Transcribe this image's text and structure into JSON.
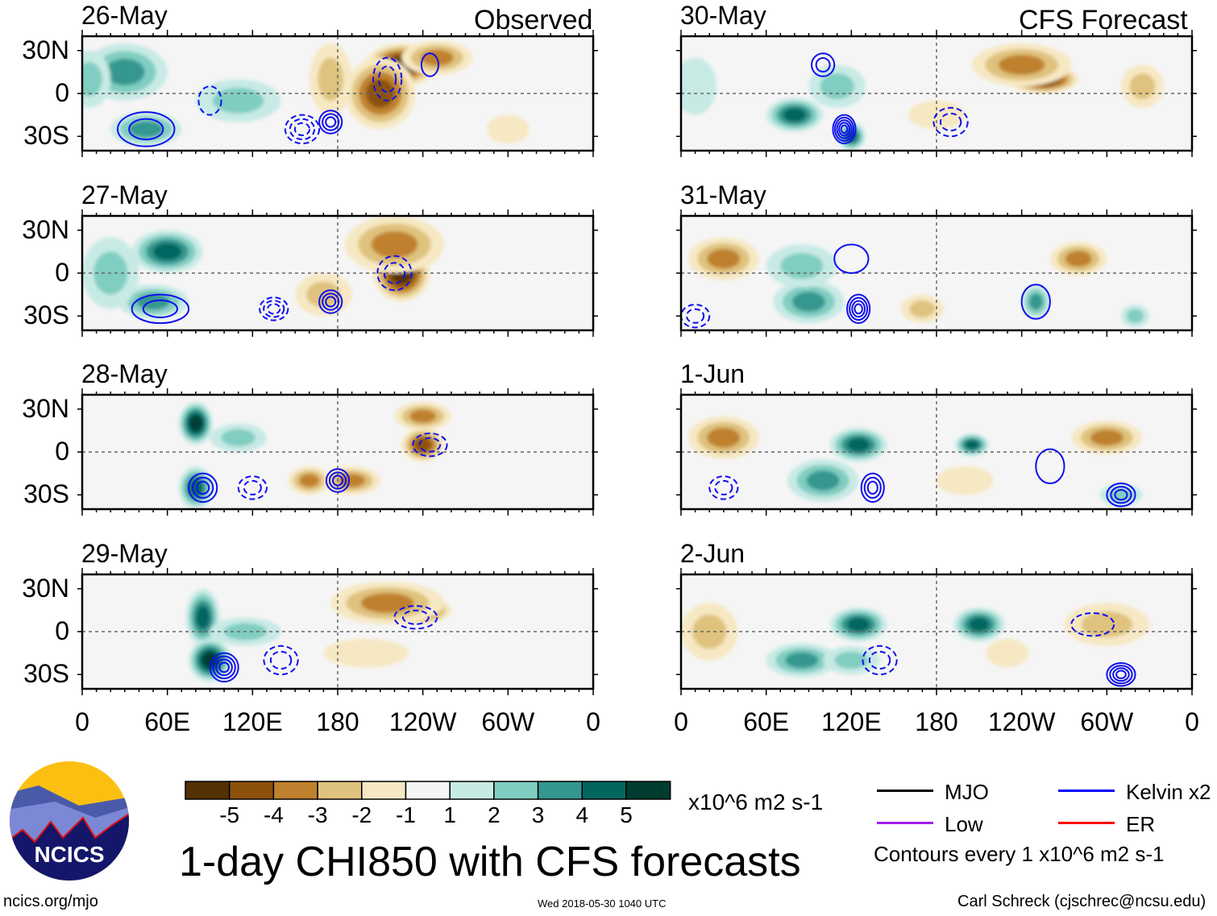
{
  "title": "1-day CHI850 with CFS forecasts",
  "column_labels": {
    "left": "Observed",
    "right": "CFS Forecast"
  },
  "units": "x10^6 m2 s-1",
  "contour_note": "Contours every 1 x10^6 m2 s-1",
  "legend": [
    {
      "label": "MJO",
      "color": "#000000"
    },
    {
      "label": "Kelvin x2",
      "color": "#0000ff"
    },
    {
      "label": "Low",
      "color": "#a020f0"
    },
    {
      "label": "ER",
      "color": "#ff0000"
    }
  ],
  "footer": {
    "left": "ncics.org/mjo",
    "center": "Wed 2018-05-30 1040 UTC",
    "right": "Carl Schreck (cjschrec@ncsu.edu)"
  },
  "logo_text": "NCICS",
  "colorbar": {
    "ticks": [
      "-5",
      "-4",
      "-3",
      "-2",
      "-1",
      "1",
      "2",
      "3",
      "4",
      "5"
    ],
    "colors": [
      "#543005",
      "#8c510a",
      "#bf812d",
      "#dfc27d",
      "#f6e8c3",
      "#f5f5f5",
      "#c7eae5",
      "#80cdc1",
      "#35978f",
      "#01665e",
      "#003c30"
    ]
  },
  "chart_data": {
    "type": "heatmap",
    "lat_ticks": [
      "30N",
      "0",
      "30S"
    ],
    "lon_ticks": [
      "0",
      "60E",
      "120E",
      "180",
      "120W",
      "60W",
      "0"
    ],
    "lat_range": [
      -40,
      40
    ],
    "lon_range": [
      0,
      360
    ],
    "panels": [
      {
        "date": "26-May",
        "col": 0,
        "row": 0,
        "blobs": [
          [
            30,
            15,
            3,
            30,
            20
          ],
          [
            45,
            -25,
            3,
            25,
            12
          ],
          [
            110,
            -5,
            2,
            30,
            15
          ],
          [
            5,
            10,
            2,
            15,
            20
          ],
          [
            225,
            20,
            -5,
            25,
            15
          ],
          [
            210,
            0,
            -4,
            25,
            25
          ],
          [
            250,
            25,
            -3,
            25,
            12
          ],
          [
            175,
            10,
            -2,
            15,
            25
          ],
          [
            300,
            -25,
            -1,
            15,
            10
          ]
        ],
        "contours": [
          [
            45,
            -25,
            20,
            12,
            0,
            2
          ],
          [
            155,
            -25,
            12,
            10,
            1,
            3
          ],
          [
            175,
            -20,
            8,
            8,
            0,
            3
          ],
          [
            215,
            10,
            10,
            15,
            1,
            2
          ],
          [
            245,
            20,
            6,
            8,
            0,
            1
          ],
          [
            90,
            -5,
            8,
            10,
            1,
            1
          ]
        ]
      },
      {
        "date": "27-May",
        "col": 0,
        "row": 1,
        "blobs": [
          [
            60,
            15,
            4,
            25,
            15
          ],
          [
            50,
            -20,
            3,
            25,
            12
          ],
          [
            20,
            0,
            2,
            20,
            25
          ],
          [
            225,
            0,
            -5,
            20,
            20
          ],
          [
            220,
            20,
            -3,
            35,
            20
          ],
          [
            170,
            -15,
            -2,
            20,
            15
          ]
        ],
        "contours": [
          [
            55,
            -25,
            20,
            10,
            0,
            2
          ],
          [
            175,
            -20,
            8,
            8,
            0,
            3
          ],
          [
            135,
            -25,
            10,
            8,
            1,
            3
          ],
          [
            220,
            0,
            12,
            12,
            1,
            2
          ]
        ]
      },
      {
        "date": "28-May",
        "col": 0,
        "row": 2,
        "blobs": [
          [
            80,
            20,
            5,
            12,
            15
          ],
          [
            80,
            -25,
            4,
            12,
            15
          ],
          [
            110,
            10,
            2,
            20,
            10
          ],
          [
            240,
            5,
            -4,
            15,
            12
          ],
          [
            240,
            25,
            -3,
            20,
            10
          ],
          [
            160,
            -20,
            -3,
            15,
            10
          ],
          [
            190,
            -20,
            -3,
            20,
            10
          ]
        ],
        "contours": [
          [
            85,
            -25,
            10,
            10,
            0,
            3
          ],
          [
            180,
            -20,
            8,
            8,
            0,
            3
          ],
          [
            245,
            5,
            12,
            8,
            1,
            2
          ],
          [
            120,
            -25,
            10,
            8,
            1,
            2
          ]
        ]
      },
      {
        "date": "29-May",
        "col": 0,
        "row": 3,
        "blobs": [
          [
            85,
            10,
            4,
            12,
            20
          ],
          [
            90,
            -20,
            5,
            15,
            15
          ],
          [
            115,
            0,
            2,
            25,
            10
          ],
          [
            235,
            15,
            -5,
            25,
            10
          ],
          [
            215,
            20,
            -3,
            40,
            15
          ],
          [
            200,
            -15,
            -1,
            30,
            10
          ]
        ],
        "contours": [
          [
            100,
            -25,
            10,
            10,
            0,
            4
          ],
          [
            140,
            -20,
            12,
            10,
            1,
            2
          ],
          [
            235,
            10,
            15,
            8,
            1,
            2
          ]
        ]
      },
      {
        "date": "30-May",
        "col": 1,
        "row": 0,
        "blobs": [
          [
            80,
            -15,
            4,
            20,
            12
          ],
          [
            120,
            -30,
            4,
            10,
            10
          ],
          [
            110,
            5,
            2,
            20,
            15
          ],
          [
            10,
            5,
            1,
            15,
            20
          ],
          [
            255,
            10,
            -5,
            25,
            10
          ],
          [
            240,
            20,
            -3,
            35,
            15
          ],
          [
            325,
            5,
            -2,
            15,
            15
          ],
          [
            180,
            -15,
            -1,
            20,
            10
          ]
        ],
        "contours": [
          [
            115,
            -25,
            8,
            10,
            0,
            5
          ],
          [
            100,
            20,
            8,
            8,
            0,
            2
          ],
          [
            190,
            -20,
            12,
            10,
            1,
            2
          ]
        ]
      },
      {
        "date": "31-May",
        "col": 1,
        "row": 1,
        "blobs": [
          [
            90,
            -20,
            3,
            25,
            15
          ],
          [
            85,
            5,
            2,
            25,
            15
          ],
          [
            250,
            -20,
            3,
            10,
            12
          ],
          [
            320,
            -30,
            2,
            10,
            8
          ],
          [
            30,
            10,
            -3,
            25,
            15
          ],
          [
            280,
            10,
            -3,
            20,
            12
          ],
          [
            170,
            -25,
            -2,
            15,
            10
          ]
        ],
        "contours": [
          [
            125,
            -25,
            8,
            10,
            0,
            4
          ],
          [
            250,
            -20,
            10,
            12,
            0,
            1
          ],
          [
            120,
            10,
            12,
            10,
            0,
            1
          ],
          [
            10,
            -30,
            10,
            8,
            1,
            2
          ]
        ]
      },
      {
        "date": "1-Jun",
        "col": 1,
        "row": 2,
        "blobs": [
          [
            125,
            5,
            4,
            20,
            12
          ],
          [
            205,
            5,
            4,
            12,
            8
          ],
          [
            100,
            -20,
            3,
            25,
            15
          ],
          [
            310,
            -30,
            2,
            15,
            8
          ],
          [
            30,
            10,
            -3,
            25,
            15
          ],
          [
            300,
            10,
            -3,
            25,
            12
          ],
          [
            200,
            -20,
            -1,
            20,
            10
          ]
        ],
        "contours": [
          [
            135,
            -25,
            8,
            10,
            0,
            3
          ],
          [
            310,
            -30,
            10,
            8,
            0,
            3
          ],
          [
            260,
            -10,
            10,
            12,
            0,
            1
          ],
          [
            30,
            -25,
            10,
            8,
            1,
            2
          ]
        ]
      },
      {
        "date": "2-Jun",
        "col": 1,
        "row": 3,
        "blobs": [
          [
            125,
            5,
            4,
            20,
            12
          ],
          [
            210,
            5,
            4,
            18,
            12
          ],
          [
            85,
            -20,
            3,
            25,
            12
          ],
          [
            120,
            -20,
            2,
            20,
            10
          ],
          [
            20,
            0,
            -2,
            20,
            20
          ],
          [
            300,
            5,
            -2,
            30,
            15
          ],
          [
            230,
            -15,
            -1,
            15,
            10
          ]
        ],
        "contours": [
          [
            310,
            -30,
            10,
            8,
            0,
            4
          ],
          [
            140,
            -20,
            12,
            10,
            1,
            2
          ],
          [
            290,
            5,
            15,
            8,
            1,
            1
          ]
        ]
      }
    ]
  }
}
